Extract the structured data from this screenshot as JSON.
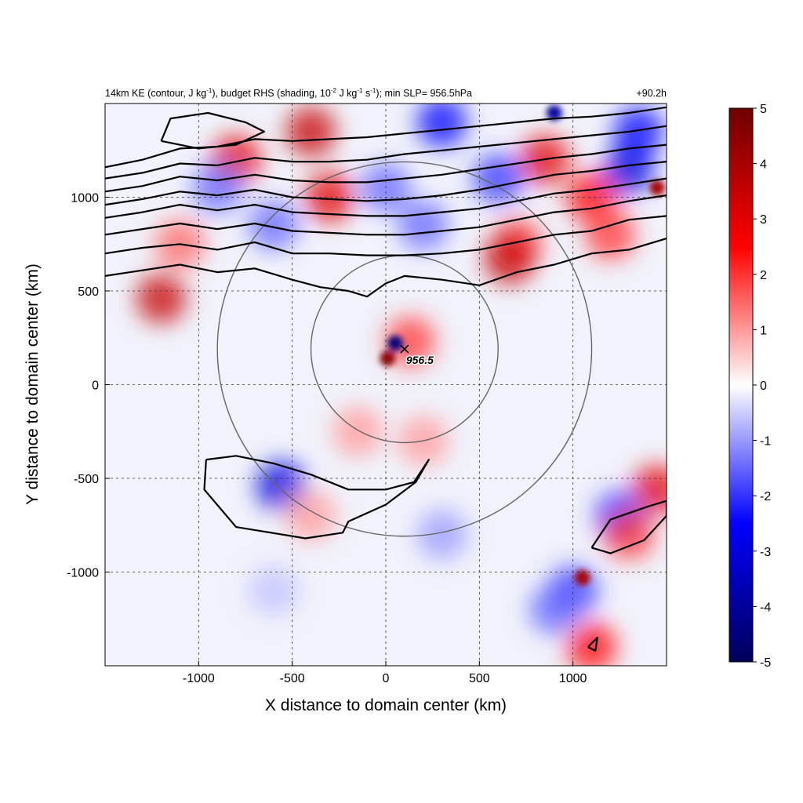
{
  "chart_data": {
    "type": "heatmap",
    "title": "14km KE (contour, J kg⁻¹), budget RHS (shading, 10⁻² J kg⁻¹ s⁻¹); min SLP= 956.5hPa",
    "title_parts": {
      "p1": "14km KE (contour, J kg",
      "s1": "-1",
      "p2": "), budget RHS (shading, 10",
      "s2": "-2",
      "p3": " J kg",
      "s3": "-1",
      "p4": " s",
      "s4": "-1",
      "p5": "); min SLP= 956.5hPa"
    },
    "time_label": "+90.2h",
    "xlabel": "X distance to domain center (km)",
    "ylabel": "Y distance to domain center (km)",
    "xlim": [
      -1500,
      1500
    ],
    "ylim": [
      -1500,
      1500
    ],
    "x_ticks": [
      -1000,
      -500,
      0,
      500,
      1000
    ],
    "y_ticks": [
      -1000,
      -500,
      0,
      500,
      1000
    ],
    "x_tick_labels": [
      "-1000",
      "-500",
      "0",
      "500",
      "1000"
    ],
    "y_tick_labels": [
      "-1000",
      "-500",
      "0",
      "500",
      "1000"
    ],
    "grid": "dashed",
    "colorbar": {
      "min": -5,
      "max": 5,
      "ticks": [
        5,
        4,
        3,
        2,
        1,
        0,
        -1,
        -2,
        -3,
        -4,
        -5
      ],
      "tick_labels": [
        "5",
        "4",
        "3",
        "2",
        "1",
        "0",
        "-1",
        "-2",
        "-3",
        "-4",
        "-5"
      ],
      "colors": [
        "#00005a",
        "#0000ff",
        "#ffffff",
        "#ff0000",
        "#6e0000"
      ],
      "placement": "right"
    },
    "storm": {
      "center": [
        100,
        190
      ],
      "label": "956.5",
      "min_slp_hPa": 956.5,
      "ring_radii_km": [
        500,
        1000
      ]
    },
    "ke_contours": [
      [
        [
          -1500,
          580
        ],
        [
          -1300,
          610
        ],
        [
          -1100,
          640
        ],
        [
          -900,
          600
        ],
        [
          -700,
          620
        ],
        [
          -500,
          560
        ],
        [
          -350,
          520
        ],
        [
          -200,
          500
        ],
        [
          -100,
          470
        ],
        [
          0,
          540
        ],
        [
          100,
          580
        ],
        [
          300,
          560
        ],
        [
          500,
          530
        ],
        [
          700,
          600
        ],
        [
          900,
          640
        ],
        [
          1100,
          700
        ],
        [
          1300,
          720
        ],
        [
          1500,
          780
        ]
      ],
      [
        [
          -1500,
          700
        ],
        [
          -1300,
          730
        ],
        [
          -1100,
          750
        ],
        [
          -900,
          720
        ],
        [
          -700,
          760
        ],
        [
          -500,
          700
        ],
        [
          -300,
          700
        ],
        [
          -100,
          690
        ],
        [
          100,
          690
        ],
        [
          300,
          700
        ],
        [
          500,
          720
        ],
        [
          700,
          760
        ],
        [
          900,
          800
        ],
        [
          1100,
          820
        ],
        [
          1300,
          880
        ],
        [
          1500,
          900
        ]
      ],
      [
        [
          -1500,
          800
        ],
        [
          -1300,
          830
        ],
        [
          -1100,
          860
        ],
        [
          -900,
          830
        ],
        [
          -700,
          860
        ],
        [
          -500,
          820
        ],
        [
          -300,
          810
        ],
        [
          -100,
          800
        ],
        [
          100,
          800
        ],
        [
          300,
          820
        ],
        [
          500,
          840
        ],
        [
          700,
          880
        ],
        [
          900,
          920
        ],
        [
          1100,
          940
        ],
        [
          1300,
          980
        ],
        [
          1500,
          1010
        ]
      ],
      [
        [
          -1500,
          890
        ],
        [
          -1300,
          920
        ],
        [
          -1100,
          960
        ],
        [
          -900,
          930
        ],
        [
          -700,
          960
        ],
        [
          -500,
          920
        ],
        [
          -300,
          910
        ],
        [
          -100,
          900
        ],
        [
          100,
          900
        ],
        [
          300,
          920
        ],
        [
          500,
          940
        ],
        [
          700,
          980
        ],
        [
          900,
          1020
        ],
        [
          1100,
          1040
        ],
        [
          1300,
          1070
        ],
        [
          1500,
          1100
        ]
      ],
      [
        [
          -1500,
          960
        ],
        [
          -1300,
          990
        ],
        [
          -1100,
          1030
        ],
        [
          -900,
          1010
        ],
        [
          -700,
          1040
        ],
        [
          -500,
          1000
        ],
        [
          -300,
          990
        ],
        [
          -100,
          980
        ],
        [
          100,
          990
        ],
        [
          300,
          1010
        ],
        [
          500,
          1040
        ],
        [
          700,
          1080
        ],
        [
          900,
          1120
        ],
        [
          1100,
          1140
        ],
        [
          1300,
          1170
        ],
        [
          1500,
          1190
        ]
      ],
      [
        [
          -1500,
          1030
        ],
        [
          -1300,
          1060
        ],
        [
          -1100,
          1110
        ],
        [
          -900,
          1090
        ],
        [
          -700,
          1120
        ],
        [
          -500,
          1090
        ],
        [
          -300,
          1080
        ],
        [
          -100,
          1080
        ],
        [
          100,
          1100
        ],
        [
          300,
          1120
        ],
        [
          500,
          1150
        ],
        [
          700,
          1180
        ],
        [
          900,
          1210
        ],
        [
          1100,
          1230
        ],
        [
          1300,
          1260
        ],
        [
          1500,
          1280
        ]
      ],
      [
        [
          -1500,
          1100
        ],
        [
          -1300,
          1130
        ],
        [
          -1100,
          1180
        ],
        [
          -900,
          1170
        ],
        [
          -700,
          1210
        ],
        [
          -500,
          1190
        ],
        [
          -300,
          1190
        ],
        [
          -100,
          1200
        ],
        [
          100,
          1230
        ],
        [
          300,
          1250
        ],
        [
          500,
          1270
        ],
        [
          700,
          1290
        ],
        [
          900,
          1310
        ],
        [
          1100,
          1330
        ],
        [
          1300,
          1350
        ],
        [
          1500,
          1380
        ]
      ],
      [
        [
          -1500,
          1160
        ],
        [
          -1300,
          1200
        ],
        [
          -1100,
          1260
        ],
        [
          -900,
          1270
        ],
        [
          -700,
          1310
        ],
        [
          -500,
          1300
        ],
        [
          -300,
          1310
        ],
        [
          -100,
          1320
        ],
        [
          100,
          1340
        ],
        [
          300,
          1360
        ],
        [
          500,
          1380
        ],
        [
          700,
          1400
        ],
        [
          900,
          1420
        ],
        [
          1100,
          1430
        ],
        [
          1300,
          1450
        ],
        [
          1500,
          1480
        ]
      ],
      [
        [
          -1200,
          1300
        ],
        [
          -1150,
          1420
        ],
        [
          -950,
          1450
        ],
        [
          -750,
          1400
        ],
        [
          -650,
          1350
        ],
        [
          -800,
          1280
        ],
        [
          -1000,
          1260
        ],
        [
          -1200,
          1300
        ]
      ],
      [
        [
          -960,
          -400
        ],
        [
          -800,
          -380
        ],
        [
          -600,
          -420
        ],
        [
          -400,
          -480
        ],
        [
          -200,
          -560
        ],
        [
          0,
          -560
        ],
        [
          150,
          -520
        ],
        [
          230,
          -400
        ],
        [
          160,
          -520
        ],
        [
          0,
          -640
        ],
        [
          -200,
          -730
        ],
        [
          -230,
          -790
        ],
        [
          -430,
          -820
        ],
        [
          -800,
          -760
        ],
        [
          -970,
          -560
        ],
        [
          -960,
          -400
        ]
      ],
      [
        [
          1100,
          -870
        ],
        [
          1200,
          -720
        ],
        [
          1400,
          -650
        ],
        [
          1500,
          -620
        ],
        [
          1500,
          -700
        ],
        [
          1380,
          -830
        ],
        [
          1200,
          -900
        ],
        [
          1100,
          -870
        ]
      ],
      [
        [
          1080,
          -1400
        ],
        [
          1130,
          -1350
        ],
        [
          1120,
          -1420
        ],
        [
          1080,
          -1400
        ]
      ]
    ],
    "shading_features": [
      {
        "x": 1100,
        "y": 1000,
        "v": 2.5
      },
      {
        "x": 850,
        "y": 1200,
        "v": 3
      },
      {
        "x": -300,
        "y": 1000,
        "v": 3
      },
      {
        "x": -400,
        "y": 1350,
        "v": 3.5
      },
      {
        "x": -800,
        "y": 1200,
        "v": 3
      },
      {
        "x": 900,
        "y": 1450,
        "v": -4
      },
      {
        "x": 300,
        "y": 1400,
        "v": -2.5
      },
      {
        "x": 600,
        "y": 1100,
        "v": -2
      },
      {
        "x": 1300,
        "y": 1150,
        "v": -3
      },
      {
        "x": 0,
        "y": 1050,
        "v": -1.5
      },
      {
        "x": 200,
        "y": 850,
        "v": -1.5
      },
      {
        "x": -1100,
        "y": 750,
        "v": 1.5
      },
      {
        "x": 700,
        "y": 750,
        "v": 2
      },
      {
        "x": 1200,
        "y": 800,
        "v": 2
      },
      {
        "x": -600,
        "y": 850,
        "v": -1.5
      },
      {
        "x": -900,
        "y": 1050,
        "v": -1.5
      },
      {
        "x": 1350,
        "y": 1350,
        "v": -2.5
      },
      {
        "x": 1450,
        "y": 1050,
        "v": 4
      },
      {
        "x": 50,
        "y": 220,
        "v": -4.5
      },
      {
        "x": 10,
        "y": 140,
        "v": 4.5
      },
      {
        "x": 130,
        "y": 230,
        "v": 2
      },
      {
        "x": -1200,
        "y": 460,
        "v": 3.5
      },
      {
        "x": 660,
        "y": 670,
        "v": 3.5
      },
      {
        "x": -560,
        "y": -540,
        "v": -3
      },
      {
        "x": 1450,
        "y": -560,
        "v": 3
      },
      {
        "x": 1250,
        "y": -700,
        "v": -2
      },
      {
        "x": 1300,
        "y": -800,
        "v": 2
      },
      {
        "x": 1050,
        "y": -1030,
        "v": 4
      },
      {
        "x": 1000,
        "y": -1100,
        "v": -2
      },
      {
        "x": 1100,
        "y": -1400,
        "v": 2.5
      },
      {
        "x": 900,
        "y": -1200,
        "v": -1.5
      },
      {
        "x": 200,
        "y": -300,
        "v": 1
      },
      {
        "x": -150,
        "y": -250,
        "v": 1
      },
      {
        "x": -400,
        "y": -700,
        "v": 1
      },
      {
        "x": 300,
        "y": -800,
        "v": -1
      },
      {
        "x": -600,
        "y": -1100,
        "v": -0.6
      }
    ]
  }
}
